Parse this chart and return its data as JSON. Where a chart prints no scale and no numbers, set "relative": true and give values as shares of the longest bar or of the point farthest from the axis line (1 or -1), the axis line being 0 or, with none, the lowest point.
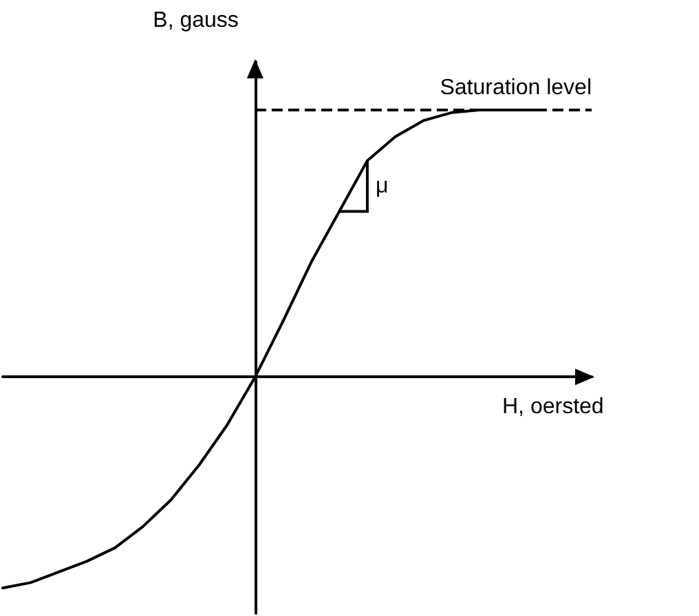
{
  "chart_data": {
    "type": "line",
    "relative": true,
    "xlabel": "H, oersted",
    "ylabel": "B, gauss",
    "categories": [
      null,
      null,
      null,
      null,
      null,
      null,
      null,
      null,
      null,
      null,
      null,
      null,
      null,
      null,
      null,
      null,
      null,
      null,
      null,
      null,
      null,
      null
    ],
    "series": [
      {
        "color": "#000000",
        "values": [
          -0.79,
          -0.77,
          -0.73,
          -0.69,
          -0.64,
          -0.56,
          -0.46,
          -0.33,
          -0.18,
          0,
          0.21,
          0.43,
          0.62,
          0.81,
          0.9,
          0.96,
          0.99,
          1,
          1,
          1,
          null,
          null
        ]
      }
    ],
    "ref_lines": [
      {
        "axis": "y",
        "value": 1,
        "label": "Saturation level",
        "color": "#000000",
        "line_style": "dashed"
      }
    ],
    "annotations": [
      "μ"
    ],
    "marker": "none",
    "line_style": "solid",
    "grid": false
  }
}
